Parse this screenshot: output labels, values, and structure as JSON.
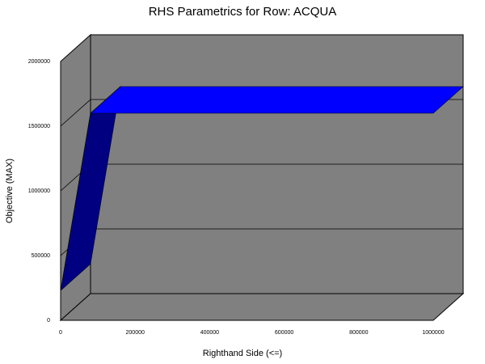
{
  "chart_data": {
    "type": "area",
    "title": "RHS Parametrics for Row: ACQUA",
    "xlabel": "Righthand Side (<=)",
    "ylabel": "Objective (MAX)",
    "xlim": [
      0,
      1000000
    ],
    "ylim": [
      0,
      2000000
    ],
    "x_ticks": [
      "0",
      "200000",
      "400000",
      "600000",
      "800000",
      "1000000"
    ],
    "y_ticks": [
      "0",
      "500000",
      "1000000",
      "1500000",
      "2000000"
    ],
    "grid": true,
    "style": "3d",
    "series": [
      {
        "x": [
          0,
          80000,
          1000000
        ],
        "y": [
          230000,
          1600000,
          1600000
        ]
      }
    ]
  },
  "colors": {
    "background": "#ffffff",
    "plot_floor": "#808080",
    "plot_wall": "#808080",
    "series_top": "#0000ff",
    "series_front": "#000080",
    "gridline": "#000000"
  }
}
